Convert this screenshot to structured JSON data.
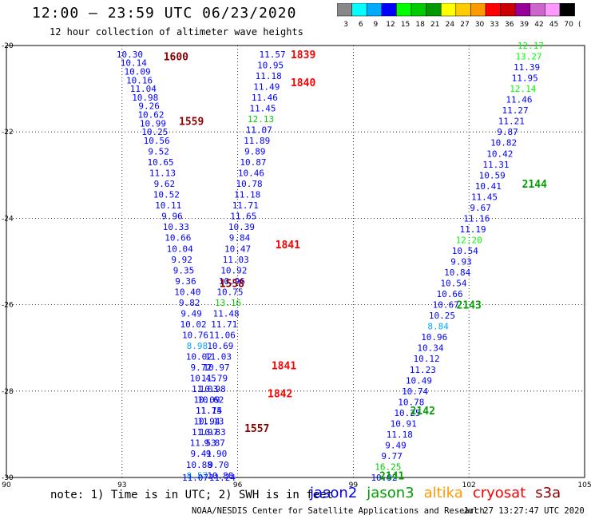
{
  "title": "12:00 – 23:59 UTC 06/23/2020",
  "subtitle": "12 hour collection of altimeter wave heights",
  "note": "note: 1) Time is in UTC; 2) SWH is in feet",
  "credit": "NOAA/NESDIS Center for Satellite Applications and Research",
  "timestamp": "Jul 27 13:27:47 UTC 2020",
  "legend": [
    {
      "name": "jason2",
      "color": "#0000ff"
    },
    {
      "name": "jason3",
      "color": "#00a000"
    },
    {
      "name": "altika",
      "color": "#ff9900"
    },
    {
      "name": "cryosat",
      "color": "#ff0000"
    },
    {
      "name": "s3a",
      "color": "#8b0000"
    }
  ],
  "colorbar": {
    "colors": [
      "#888888",
      "#00ffff",
      "#00aaff",
      "#0000ff",
      "#00ff00",
      "#00cc00",
      "#009900",
      "#ffff00",
      "#ffcc00",
      "#ff9900",
      "#ff0000",
      "#cc0000",
      "#990099",
      "#cc66cc",
      "#ff99ff",
      "#000000"
    ],
    "labels": [
      "3",
      "6",
      "9",
      "12",
      "15",
      "18",
      "21",
      "24",
      "27",
      "30",
      "33",
      "36",
      "39",
      "42",
      "45",
      "70",
      "(ft)"
    ]
  },
  "chart_data": {
    "type": "scatter",
    "xlim": [
      90,
      105
    ],
    "ylim": [
      -30,
      -20
    ],
    "xticks": [
      "90",
      "93",
      "96",
      "99",
      "102",
      "105"
    ],
    "yticks": [
      "-20",
      "-22",
      "-24",
      "-26",
      "-28",
      "-30"
    ],
    "grid": true,
    "tracks": [
      {
        "name": "track-1",
        "color": "#0000ff",
        "points": [
          {
            "x": 93.2,
            "y": -20.2,
            "v": "10.30"
          },
          {
            "x": 93.3,
            "y": -20.4,
            "v": "10.14"
          },
          {
            "x": 93.4,
            "y": -20.6,
            "v": "10.09"
          },
          {
            "x": 93.45,
            "y": -20.8,
            "v": "10.16"
          },
          {
            "x": 93.55,
            "y": -21.0,
            "v": "11.04"
          },
          {
            "x": 93.6,
            "y": -21.2,
            "v": "10.98"
          },
          {
            "x": 93.7,
            "y": -21.4,
            "v": "9.26"
          },
          {
            "x": 93.75,
            "y": -21.6,
            "v": "10.62"
          },
          {
            "x": 93.8,
            "y": -21.8,
            "v": "10.99"
          },
          {
            "x": 93.85,
            "y": -22.0,
            "v": "10.25"
          },
          {
            "x": 93.9,
            "y": -22.2,
            "v": "10.56"
          },
          {
            "x": 93.95,
            "y": -22.45,
            "v": "9.52"
          },
          {
            "x": 94.0,
            "y": -22.7,
            "v": "10.65"
          },
          {
            "x": 94.05,
            "y": -22.95,
            "v": "11.13"
          },
          {
            "x": 94.1,
            "y": -23.2,
            "v": "9.62"
          },
          {
            "x": 94.15,
            "y": -23.45,
            "v": "10.52"
          },
          {
            "x": 94.2,
            "y": -23.7,
            "v": "10.11"
          },
          {
            "x": 94.3,
            "y": -23.95,
            "v": "9.96"
          },
          {
            "x": 94.4,
            "y": -24.2,
            "v": "10.33"
          },
          {
            "x": 94.45,
            "y": -24.45,
            "v": "10.66"
          },
          {
            "x": 94.5,
            "y": -24.7,
            "v": "10.04"
          },
          {
            "x": 94.55,
            "y": -24.95,
            "v": "9.92"
          },
          {
            "x": 94.6,
            "y": -25.2,
            "v": "9.35"
          },
          {
            "x": 94.65,
            "y": -25.45,
            "v": "9.36"
          },
          {
            "x": 94.7,
            "y": -25.7,
            "v": "10.40"
          },
          {
            "x": 94.75,
            "y": -25.95,
            "v": "9.82"
          },
          {
            "x": 94.8,
            "y": -26.2,
            "v": "9.49"
          },
          {
            "x": 94.85,
            "y": -26.45,
            "v": "10.02"
          },
          {
            "x": 94.9,
            "y": -26.7,
            "v": "10.76"
          },
          {
            "x": 94.95,
            "y": -26.95,
            "v": "8.98",
            "color": "#00aaff"
          },
          {
            "x": 95.0,
            "y": -27.2,
            "v": "10.02"
          },
          {
            "x": 95.05,
            "y": -27.45,
            "v": "9.72"
          },
          {
            "x": 95.1,
            "y": -27.7,
            "v": "10.45"
          },
          {
            "x": 95.15,
            "y": -27.95,
            "v": "11.03"
          },
          {
            "x": 95.2,
            "y": -28.2,
            "v": "10.09"
          },
          {
            "x": 95.25,
            "y": -28.45,
            "v": "11.75"
          },
          {
            "x": 95.3,
            "y": -28.7,
            "v": "11.13"
          },
          {
            "x": 95.35,
            "y": -28.95,
            "v": "10.83"
          },
          {
            "x": 95.4,
            "y": -29.2,
            "v": "9.87"
          },
          {
            "x": 95.45,
            "y": -29.45,
            "v": "9.90"
          },
          {
            "x": 95.5,
            "y": -29.7,
            "v": "9.70"
          },
          {
            "x": 95.55,
            "y": -29.95,
            "v": "10.88"
          },
          {
            "x": 95.6,
            "y": -30.0,
            "v": "11.24"
          }
        ]
      },
      {
        "name": "track-2",
        "color": "#0000ff",
        "points": [
          {
            "x": 96.9,
            "y": -20.2,
            "v": "11.57"
          },
          {
            "x": 96.85,
            "y": -20.45,
            "v": "10.95"
          },
          {
            "x": 96.8,
            "y": -20.7,
            "v": "11.18"
          },
          {
            "x": 96.75,
            "y": -20.95,
            "v": "11.49"
          },
          {
            "x": 96.7,
            "y": -21.2,
            "v": "11.46"
          },
          {
            "x": 96.65,
            "y": -21.45,
            "v": "11.45"
          },
          {
            "x": 96.6,
            "y": -21.7,
            "v": "12.13",
            "color": "#00cc00"
          },
          {
            "x": 96.55,
            "y": -21.95,
            "v": "11.07"
          },
          {
            "x": 96.5,
            "y": -22.2,
            "v": "11.89"
          },
          {
            "x": 96.45,
            "y": -22.45,
            "v": "9.89"
          },
          {
            "x": 96.4,
            "y": -22.7,
            "v": "10.87"
          },
          {
            "x": 96.35,
            "y": -22.95,
            "v": "10.46"
          },
          {
            "x": 96.3,
            "y": -23.2,
            "v": "10.78"
          },
          {
            "x": 96.25,
            "y": -23.45,
            "v": "11.18"
          },
          {
            "x": 96.2,
            "y": -23.7,
            "v": "11.71"
          },
          {
            "x": 96.15,
            "y": -23.95,
            "v": "11.65"
          },
          {
            "x": 96.1,
            "y": -24.2,
            "v": "10.39"
          },
          {
            "x": 96.05,
            "y": -24.45,
            "v": "9.84"
          },
          {
            "x": 96.0,
            "y": -24.7,
            "v": "10.47"
          },
          {
            "x": 95.95,
            "y": -24.95,
            "v": "11.03"
          },
          {
            "x": 95.9,
            "y": -25.2,
            "v": "10.92"
          },
          {
            "x": 95.85,
            "y": -25.45,
            "v": "10.96"
          },
          {
            "x": 95.8,
            "y": -25.7,
            "v": "10.75"
          },
          {
            "x": 95.75,
            "y": -25.95,
            "v": "13.16",
            "color": "#00cc00"
          },
          {
            "x": 95.7,
            "y": -26.2,
            "v": "11.48"
          },
          {
            "x": 95.65,
            "y": -26.45,
            "v": "11.71"
          },
          {
            "x": 95.6,
            "y": -26.7,
            "v": "11.06"
          },
          {
            "x": 95.55,
            "y": -26.95,
            "v": "10.69"
          },
          {
            "x": 95.5,
            "y": -27.2,
            "v": "11.03"
          },
          {
            "x": 95.45,
            "y": -27.45,
            "v": "10.97"
          },
          {
            "x": 95.4,
            "y": -27.7,
            "v": "11.79"
          },
          {
            "x": 95.35,
            "y": -27.95,
            "v": "10.98"
          },
          {
            "x": 95.3,
            "y": -28.2,
            "v": "10.62"
          },
          {
            "x": 95.25,
            "y": -28.45,
            "v": "11.14"
          },
          {
            "x": 95.2,
            "y": -28.7,
            "v": "10.94"
          },
          {
            "x": 95.15,
            "y": -28.95,
            "v": "11.97"
          },
          {
            "x": 95.1,
            "y": -29.2,
            "v": "11.53"
          },
          {
            "x": 95.05,
            "y": -29.45,
            "v": "9.41"
          },
          {
            "x": 95.0,
            "y": -29.7,
            "v": "10.88"
          },
          {
            "x": 94.95,
            "y": -29.95,
            "v": "8.57",
            "color": "#00aaff"
          },
          {
            "x": 94.9,
            "y": -30.0,
            "v": "11.07"
          }
        ]
      },
      {
        "name": "track-3",
        "color": "#0000ff",
        "points": [
          {
            "x": 103.6,
            "y": -20.0,
            "v": "12.17",
            "color": "#00ff00"
          },
          {
            "x": 103.55,
            "y": -20.25,
            "v": "13.27",
            "color": "#00ff00"
          },
          {
            "x": 103.5,
            "y": -20.5,
            "v": "11.39"
          },
          {
            "x": 103.45,
            "y": -20.75,
            "v": "11.95"
          },
          {
            "x": 103.4,
            "y": -21.0,
            "v": "12.14",
            "color": "#00ff00"
          },
          {
            "x": 103.3,
            "y": -21.25,
            "v": "11.46"
          },
          {
            "x": 103.2,
            "y": -21.5,
            "v": "11.27"
          },
          {
            "x": 103.1,
            "y": -21.75,
            "v": "11.21"
          },
          {
            "x": 103.0,
            "y": -22.0,
            "v": "9.87"
          },
          {
            "x": 102.9,
            "y": -22.25,
            "v": "10.82"
          },
          {
            "x": 102.8,
            "y": -22.5,
            "v": "10.42"
          },
          {
            "x": 102.7,
            "y": -22.75,
            "v": "11.31"
          },
          {
            "x": 102.6,
            "y": -23.0,
            "v": "10.59"
          },
          {
            "x": 102.5,
            "y": -23.25,
            "v": "10.41"
          },
          {
            "x": 102.4,
            "y": -23.5,
            "v": "11.45"
          },
          {
            "x": 102.3,
            "y": -23.75,
            "v": "9.67"
          },
          {
            "x": 102.2,
            "y": -24.0,
            "v": "11.16"
          },
          {
            "x": 102.1,
            "y": -24.25,
            "v": "11.19"
          },
          {
            "x": 102.0,
            "y": -24.5,
            "v": "12.20",
            "color": "#00ff00"
          },
          {
            "x": 101.9,
            "y": -24.75,
            "v": "10.54"
          },
          {
            "x": 101.8,
            "y": -25.0,
            "v": "9.93"
          },
          {
            "x": 101.7,
            "y": -25.25,
            "v": "10.84"
          },
          {
            "x": 101.6,
            "y": -25.5,
            "v": "10.54"
          },
          {
            "x": 101.5,
            "y": -25.75,
            "v": "10.66"
          },
          {
            "x": 101.4,
            "y": -26.0,
            "v": "10.67"
          },
          {
            "x": 101.3,
            "y": -26.25,
            "v": "10.25"
          },
          {
            "x": 101.2,
            "y": -26.5,
            "v": "8.84",
            "color": "#00aaff"
          },
          {
            "x": 101.1,
            "y": -26.75,
            "v": "10.96"
          },
          {
            "x": 101.0,
            "y": -27.0,
            "v": "10.34"
          },
          {
            "x": 100.9,
            "y": -27.25,
            "v": "10.12"
          },
          {
            "x": 100.8,
            "y": -27.5,
            "v": "11.23"
          },
          {
            "x": 100.7,
            "y": -27.75,
            "v": "10.49"
          },
          {
            "x": 100.6,
            "y": -28.0,
            "v": "10.74"
          },
          {
            "x": 100.5,
            "y": -28.25,
            "v": "10.78"
          },
          {
            "x": 100.4,
            "y": -28.5,
            "v": "10.25"
          },
          {
            "x": 100.3,
            "y": -28.75,
            "v": "10.91"
          },
          {
            "x": 100.2,
            "y": -29.0,
            "v": "11.18"
          },
          {
            "x": 100.1,
            "y": -29.25,
            "v": "9.49"
          },
          {
            "x": 100.0,
            "y": -29.5,
            "v": "9.77"
          },
          {
            "x": 99.9,
            "y": -29.75,
            "v": "16.25",
            "color": "#00cc00"
          },
          {
            "x": 99.8,
            "y": -30.0,
            "v": "10.92"
          }
        ]
      }
    ],
    "time_labels": [
      {
        "x": 94.4,
        "y": -20.25,
        "text": "1600",
        "color": "#8b0000"
      },
      {
        "x": 94.8,
        "y": -21.75,
        "text": "1559",
        "color": "#8b0000"
      },
      {
        "x": 95.85,
        "y": -25.5,
        "text": "1558",
        "color": "#8b0000"
      },
      {
        "x": 97.7,
        "y": -20.2,
        "text": "1839",
        "color": "#ff0000"
      },
      {
        "x": 97.7,
        "y": -20.85,
        "text": "1840",
        "color": "#ff0000"
      },
      {
        "x": 97.3,
        "y": -24.6,
        "text": "1841",
        "color": "#ff0000"
      },
      {
        "x": 97.2,
        "y": -27.4,
        "text": "1841",
        "color": "#ff0000"
      },
      {
        "x": 97.1,
        "y": -28.05,
        "text": "1842",
        "color": "#ff0000"
      },
      {
        "x": 96.5,
        "y": -28.85,
        "text": "1557",
        "color": "#8b0000"
      },
      {
        "x": 103.7,
        "y": -23.2,
        "text": "2144",
        "color": "#00a000"
      },
      {
        "x": 102.0,
        "y": -26.0,
        "text": "2143",
        "color": "#00a000"
      },
      {
        "x": 100.8,
        "y": -28.45,
        "text": "2142",
        "color": "#00a000"
      },
      {
        "x": 100.0,
        "y": -29.95,
        "text": "2141",
        "color": "#00a000"
      }
    ]
  }
}
